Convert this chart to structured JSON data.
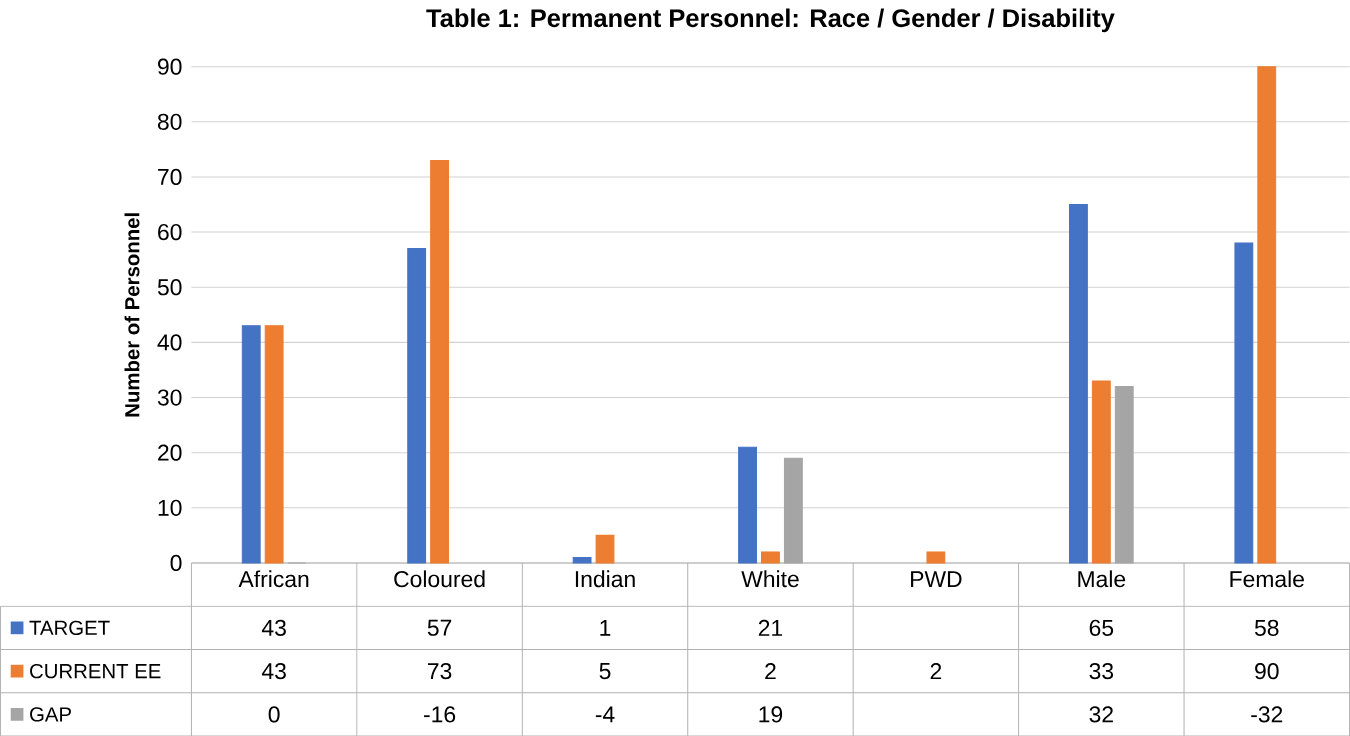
{
  "chart_data": {
    "type": "bar",
    "title": "Table 1: Permanent Personnel: Race / Gender / Disability",
    "ylabel": "Number of Personnel",
    "categories": [
      "African",
      "Coloured",
      "Indian",
      "White",
      "PWD",
      "Male",
      "Female"
    ],
    "series": [
      {
        "name": "TARGET",
        "color": "#4472c4",
        "values": [
          43,
          57,
          1,
          21,
          null,
          65,
          58
        ],
        "value_labels": [
          "43",
          "57",
          "1",
          "21",
          null,
          "65",
          "58"
        ]
      },
      {
        "name": "CURRENT EE",
        "color": "#ed7d31",
        "values": [
          43,
          73,
          5,
          2,
          2,
          33,
          90
        ],
        "value_labels": [
          "43",
          "73",
          "5",
          "2",
          "2",
          "33",
          "90"
        ]
      },
      {
        "name": "GAP",
        "color": "#a5a5a5",
        "values": [
          0,
          null,
          null,
          19,
          null,
          32,
          null
        ],
        "value_labels": [
          "0",
          "-16",
          "-4",
          "19",
          null,
          "32",
          "-32"
        ]
      }
    ],
    "ylim": [
      0,
      90
    ],
    "yticks": [
      0,
      10,
      20,
      30,
      40,
      50,
      60,
      70,
      80,
      90
    ],
    "grid": "y",
    "legend": "bottom"
  }
}
